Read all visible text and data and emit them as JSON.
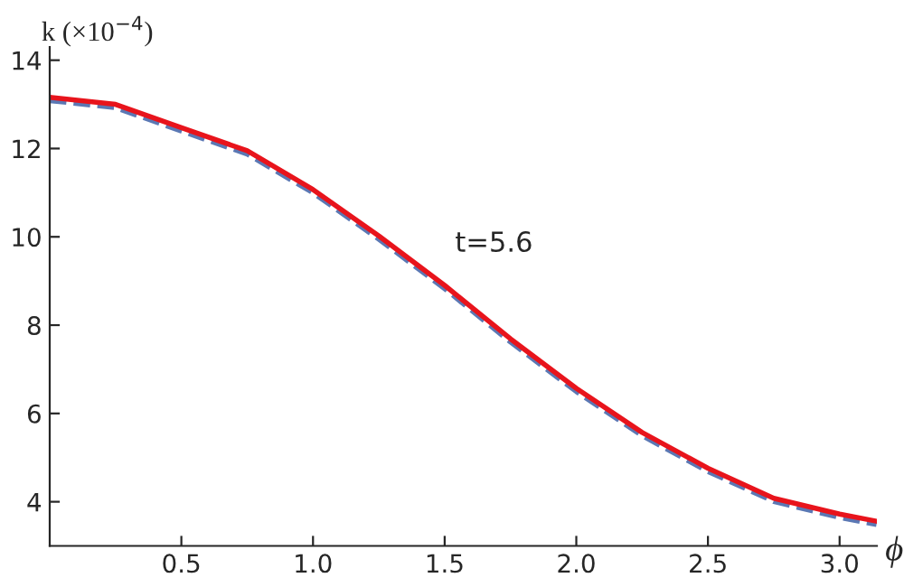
{
  "chart_data": {
    "type": "line",
    "xlabel": "ϕ",
    "ylabel": "k (×10$^{−4}$)",
    "x": [
      0,
      0.25,
      0.5,
      0.75,
      1.0,
      1.25,
      1.5,
      1.75,
      2.0,
      2.25,
      2.5,
      2.75,
      3.0,
      3.14
    ],
    "series": [
      {
        "color": "#5b78b4",
        "line_style": "dashed",
        "values": [
          13.08,
          12.92,
          12.39,
          11.87,
          10.99,
          9.94,
          8.82,
          7.61,
          6.49,
          5.49,
          4.68,
          4.0,
          3.64,
          3.48
        ]
      },
      {
        "color": "#e8141c",
        "line_style": "solid",
        "values": [
          13.16,
          13.0,
          12.47,
          11.95,
          11.07,
          10.02,
          8.9,
          7.69,
          6.57,
          5.57,
          4.76,
          4.08,
          3.72,
          3.56
        ]
      }
    ],
    "annotations": [
      "t=5.6"
    ],
    "xlim": [
      0,
      3.1416
    ],
    "ylim": [
      3.0,
      14.3
    ],
    "xticks": [
      {
        "value": 0.5,
        "label": "0.5"
      },
      {
        "value": 1.0,
        "label": "1.0"
      },
      {
        "value": 1.5,
        "label": "1.5"
      },
      {
        "value": 2.0,
        "label": "2.0"
      },
      {
        "value": 2.5,
        "label": "2.5"
      },
      {
        "value": 3.0,
        "label": "3.0"
      }
    ],
    "yticks": [
      4,
      6,
      8,
      10,
      12,
      14
    ],
    "grid": false,
    "legend": false
  }
}
